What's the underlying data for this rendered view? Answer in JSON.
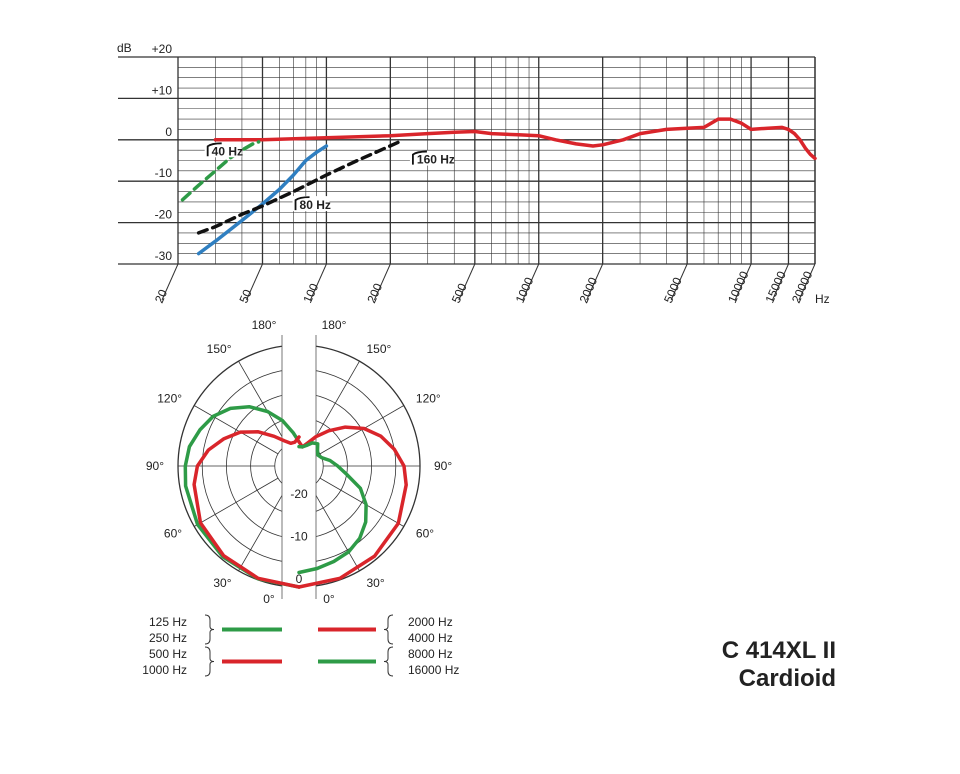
{
  "chart_data": [
    {
      "type": "line",
      "x_scale": "log",
      "xlim": [
        20,
        20000
      ],
      "ylim": [
        -30,
        20
      ],
      "y_unit_label": "dB",
      "x_unit_label": "Hz",
      "y_ticks": [
        {
          "value": 20,
          "label": "+20"
        },
        {
          "value": 10,
          "label": "+10"
        },
        {
          "value": 0,
          "label": "0"
        },
        {
          "value": -10,
          "label": "-10"
        },
        {
          "value": -20,
          "label": "-20"
        },
        {
          "value": -30,
          "label": "-30"
        }
      ],
      "x_ticks": [
        {
          "value": 20,
          "label": "20"
        },
        {
          "value": 50,
          "label": "50"
        },
        {
          "value": 100,
          "label": "100"
        },
        {
          "value": 200,
          "label": "200"
        },
        {
          "value": 500,
          "label": "500"
        },
        {
          "value": 1000,
          "label": "1000"
        },
        {
          "value": 2000,
          "label": "2000"
        },
        {
          "value": 5000,
          "label": "5000"
        },
        {
          "value": 10000,
          "label": "10000"
        },
        {
          "value": 15000,
          "label": "15000"
        },
        {
          "value": 20000,
          "label": "20000"
        }
      ],
      "grid": true,
      "series": [
        {
          "key": "main",
          "color": "#d9252b",
          "dash": "none",
          "x": [
            30,
            50,
            100,
            200,
            300,
            400,
            500,
            600,
            800,
            1000,
            1200,
            1500,
            1800,
            2000,
            2500,
            3000,
            4000,
            5000,
            6000,
            7000,
            8000,
            9000,
            10000,
            12000,
            14000,
            15000,
            16000,
            17000,
            18000,
            19000,
            20000
          ],
          "y": [
            0,
            0,
            0.5,
            1,
            1.5,
            1.8,
            2,
            1.5,
            1.2,
            1,
            0,
            -1,
            -1.5,
            -1.2,
            0,
            1.5,
            2.5,
            2.8,
            3,
            5,
            5,
            4,
            2.5,
            2.8,
            3,
            2.5,
            1.5,
            0,
            -2,
            -3.5,
            -4.5
          ]
        },
        {
          "key": "cut-40",
          "color": "#2e9b47",
          "dash": "10 6",
          "x": [
            21,
            25,
            30,
            35,
            40,
            45,
            48
          ],
          "y": [
            -14.5,
            -11,
            -7.5,
            -4.5,
            -2.5,
            -1,
            -0.5
          ]
        },
        {
          "key": "cut-80",
          "color": "#2f7fc1",
          "dash": "none",
          "x": [
            25,
            30,
            40,
            50,
            60,
            70,
            80,
            90,
            100
          ],
          "y": [
            -27.5,
            -24.5,
            -19.5,
            -15.5,
            -12,
            -8.5,
            -5,
            -3,
            -1.5
          ]
        },
        {
          "key": "cut-160",
          "color": "#111111",
          "dash": "9 6",
          "x": [
            25,
            30,
            40,
            50,
            70,
            100,
            140,
            180,
            220
          ],
          "y": [
            -22.5,
            -21,
            -18,
            -16,
            -12.5,
            -8.5,
            -5,
            -2.5,
            -0.5
          ]
        }
      ],
      "flags": [
        {
          "key": "cut-40",
          "label": "40 Hz",
          "at_x": 27,
          "at_y": -3.5
        },
        {
          "key": "cut-80",
          "label": "80 Hz",
          "at_x": 70,
          "at_y": -16.5
        },
        {
          "key": "cut-160",
          "label": "160 Hz",
          "at_x": 250,
          "at_y": -5.5
        }
      ]
    },
    {
      "type": "polar",
      "angle_labels_left": [
        "180°",
        "150°",
        "120°",
        "90°",
        "60°",
        "30°",
        "0°"
      ],
      "angle_labels_right": [
        "180°",
        "150°",
        "120°",
        "90°",
        "60°",
        "30°",
        "0°"
      ],
      "radial_labels": [
        "-20",
        "-10",
        "0"
      ],
      "radial_range_db": [
        -25,
        0
      ],
      "series_left": [
        {
          "key": "low-mid",
          "color": "#2e9b47",
          "angle_deg": [
            0,
            20,
            40,
            60,
            80,
            90,
            100,
            110,
            120,
            130,
            140,
            150,
            160,
            170,
            180
          ],
          "level_db": [
            0,
            -0.2,
            -0.5,
            -0.8,
            -1.2,
            -1.5,
            -2,
            -3.2,
            -4.5,
            -6.5,
            -9,
            -12,
            -15,
            -18,
            -20
          ]
        },
        {
          "key": "mid",
          "color": "#d9252b",
          "angle_deg": [
            0,
            20,
            40,
            60,
            80,
            90,
            100,
            110,
            120,
            130,
            140,
            150,
            160,
            170,
            180
          ],
          "level_db": [
            0,
            -0.3,
            -0.8,
            -1.5,
            -3,
            -4,
            -6,
            -8.5,
            -11,
            -14,
            -17,
            -19,
            -20,
            -20,
            -19
          ]
        }
      ],
      "series_right": [
        {
          "key": "high",
          "color": "#d9252b",
          "angle_deg": [
            0,
            20,
            40,
            60,
            80,
            90,
            100,
            110,
            120,
            130,
            140,
            150,
            160,
            170,
            180
          ],
          "level_db": [
            0,
            -0.3,
            -0.7,
            -1.3,
            -2.5,
            -3.3,
            -5,
            -7,
            -9.5,
            -12.5,
            -15.5,
            -18,
            -20,
            -21,
            -20
          ]
        },
        {
          "key": "very-high",
          "color": "#2e9b47",
          "angle_deg": [
            0,
            10,
            20,
            30,
            40,
            50,
            60,
            70,
            80,
            90,
            100,
            110,
            120,
            130,
            140,
            150,
            160,
            170,
            180
          ],
          "level_db": [
            -3,
            -3.5,
            -4,
            -4.5,
            -5.5,
            -7,
            -9,
            -11.5,
            -15,
            -17,
            -18.5,
            -20,
            -20.5,
            -20,
            -19,
            -19.5,
            -20.5,
            -21,
            -21
          ]
        }
      ],
      "legend": {
        "left_groups": [
          {
            "items": [
              "125 Hz",
              "250 Hz"
            ],
            "color": "#2e9b47"
          },
          {
            "items": [
              "500 Hz",
              "1000 Hz"
            ],
            "color": "#d9252b"
          }
        ],
        "right_groups": [
          {
            "items": [
              "2000 Hz",
              "4000 Hz"
            ],
            "color": "#d9252b"
          },
          {
            "items": [
              "8000 Hz",
              "16000 Hz"
            ],
            "color": "#2e9b47"
          }
        ]
      }
    }
  ],
  "model": {
    "name": "C 414XL II",
    "pattern": "Cardioid"
  }
}
